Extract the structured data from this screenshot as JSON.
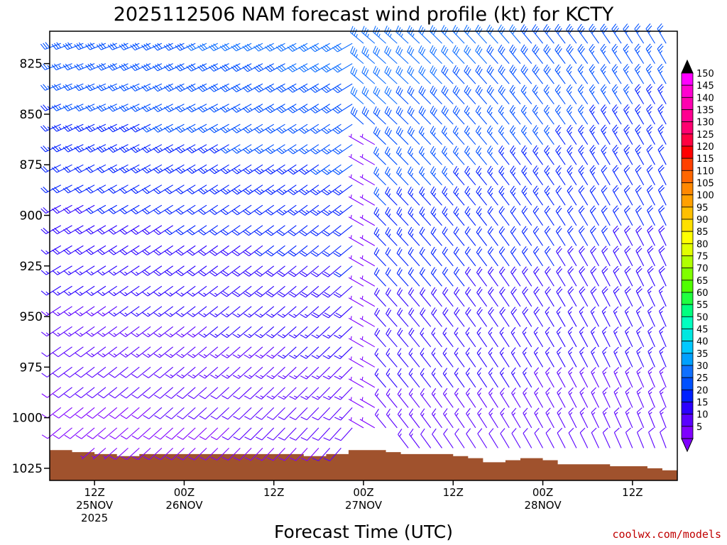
{
  "chart_data": {
    "type": "wind-barb-profile",
    "title": "2025112506 NAM forecast wind profile (kt) for KCTY",
    "xlabel": "Forecast Time (UTC)",
    "ylabel": "",
    "credit": "coolwx.com/models",
    "y_axis": {
      "scale": "pressure (hPa), increasing downward",
      "range": [
        1031,
        809
      ],
      "ticks": [
        825,
        850,
        875,
        900,
        925,
        950,
        975,
        1000,
        1025
      ]
    },
    "x_axis": {
      "range_hours_from_init": [
        0,
        84
      ],
      "ticks": [
        {
          "hour": 6,
          "lines": [
            "12Z",
            "25NOV",
            "2025"
          ]
        },
        {
          "hour": 18,
          "lines": [
            "00Z",
            "26NOV"
          ]
        },
        {
          "hour": 30,
          "lines": [
            "12Z"
          ]
        },
        {
          "hour": 42,
          "lines": [
            "00Z",
            "27NOV"
          ]
        },
        {
          "hour": 54,
          "lines": [
            "12Z"
          ]
        },
        {
          "hour": 66,
          "lines": [
            "00Z",
            "28NOV"
          ]
        },
        {
          "hour": 78,
          "lines": [
            "12Z"
          ]
        }
      ]
    },
    "colorbar": {
      "unit": "kt",
      "levels": [
        5,
        10,
        15,
        20,
        25,
        30,
        35,
        40,
        45,
        50,
        55,
        60,
        65,
        70,
        75,
        80,
        85,
        90,
        95,
        100,
        105,
        110,
        115,
        120,
        125,
        130,
        135,
        140,
        145,
        150
      ],
      "colors": [
        "#7f00ff",
        "#5a00ff",
        "#2b00ff",
        "#0020ff",
        "#0050ff",
        "#1070ff",
        "#00a0ff",
        "#00c8ff",
        "#00e8e0",
        "#00ffc0",
        "#00ff80",
        "#20ff40",
        "#50ff00",
        "#80ff00",
        "#b0ff00",
        "#e0ff00",
        "#ffff00",
        "#ffe000",
        "#ffc000",
        "#ffa000",
        "#ff8800",
        "#ff6600",
        "#ff4000",
        "#ff0000",
        "#ff0040",
        "#ff0070",
        "#ff0090",
        "#ff00b0",
        "#ff00d0",
        "#ff00ff"
      ],
      "above_color": "#000000",
      "below_color": "#7f00ff"
    },
    "surface_pressure": [
      {
        "hour": 0,
        "p": 1016
      },
      {
        "hour": 3,
        "p": 1017
      },
      {
        "hour": 6,
        "p": 1018
      },
      {
        "hour": 9,
        "p": 1019
      },
      {
        "hour": 12,
        "p": 1018
      },
      {
        "hour": 18,
        "p": 1018
      },
      {
        "hour": 24,
        "p": 1018
      },
      {
        "hour": 31,
        "p": 1018
      },
      {
        "hour": 34,
        "p": 1019
      },
      {
        "hour": 37,
        "p": 1018
      },
      {
        "hour": 40,
        "p": 1016
      },
      {
        "hour": 45,
        "p": 1017
      },
      {
        "hour": 47,
        "p": 1018
      },
      {
        "hour": 51,
        "p": 1018
      },
      {
        "hour": 54,
        "p": 1019
      },
      {
        "hour": 56,
        "p": 1020
      },
      {
        "hour": 58,
        "p": 1022
      },
      {
        "hour": 61,
        "p": 1021
      },
      {
        "hour": 63,
        "p": 1020
      },
      {
        "hour": 66,
        "p": 1021
      },
      {
        "hour": 68,
        "p": 1023
      },
      {
        "hour": 72,
        "p": 1023
      },
      {
        "hour": 75,
        "p": 1024
      },
      {
        "hour": 78,
        "p": 1024
      },
      {
        "hour": 80,
        "p": 1025
      },
      {
        "hour": 82,
        "p": 1026
      },
      {
        "hour": 84,
        "p": 1024
      }
    ],
    "surface_color": "#a0522d",
    "wind_field_description": {
      "hours_sampled": "every 1 h from 0 to 84",
      "levels_hpa": "every 10 hPa from 815 to 1025",
      "regimes": [
        {
          "hours": [
            0,
            42
          ],
          "direction_deg": "about 230 to 250 (SW to WSW)",
          "speed_kt": "about 5 to 30, increasing with height"
        },
        {
          "hours": [
            42,
            84
          ],
          "direction_deg": "about 310 to 350 (NW to N)",
          "speed_kt": "about 5 to 35, strongest aloft"
        }
      ]
    }
  }
}
